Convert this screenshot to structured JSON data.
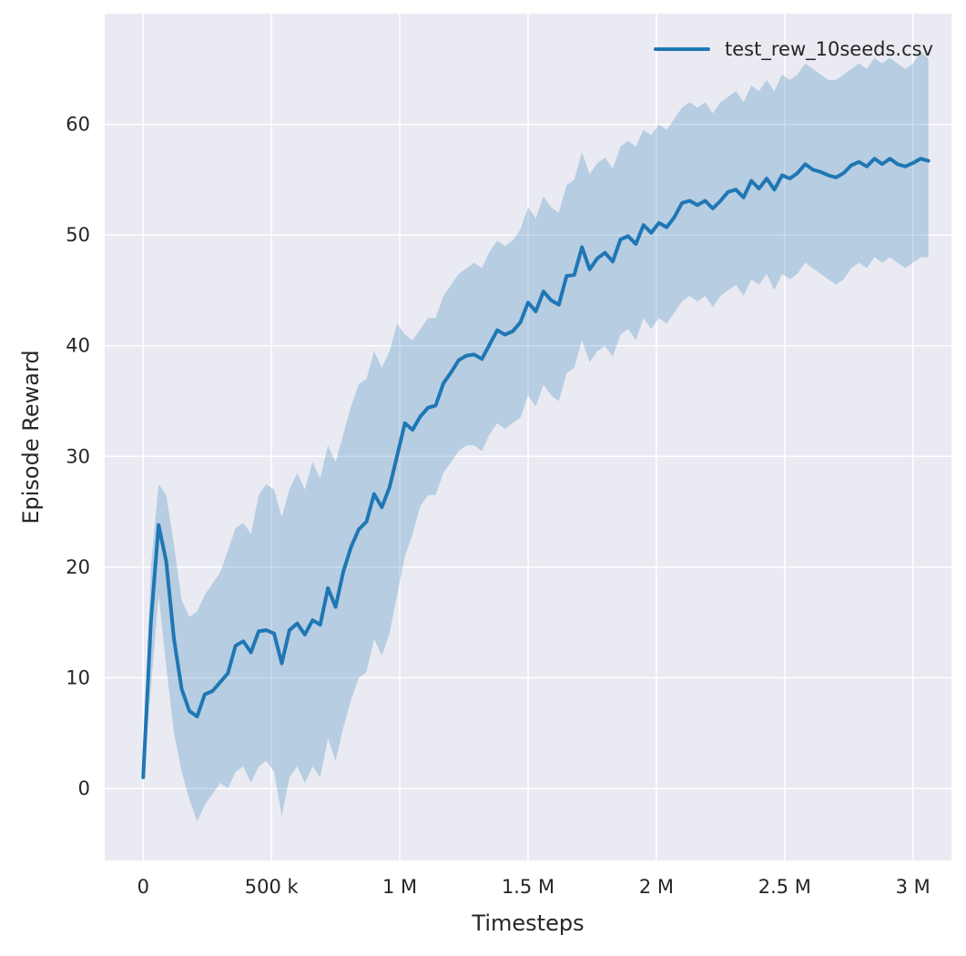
{
  "figure": {
    "background": "#ffffff",
    "axes_background": "#eaeaf2",
    "grid_color": "#ffffff",
    "text_color": "#262626"
  },
  "chart_data": {
    "type": "line",
    "title": "",
    "xlabel": "Timesteps",
    "ylabel": "Episode Reward",
    "grid": true,
    "legend": {
      "position": "upper right",
      "frame": false,
      "entries": [
        {
          "label": "test_rew_10seeds.csv",
          "color": "#1f77b4"
        }
      ]
    },
    "xlim": [
      -150000,
      3150000
    ],
    "ylim": [
      -6.5,
      70
    ],
    "x_ticks": [
      {
        "value": 0,
        "label": "0"
      },
      {
        "value": 500000,
        "label": "500 k"
      },
      {
        "value": 1000000,
        "label": "1 M"
      },
      {
        "value": 1500000,
        "label": "1.5 M"
      },
      {
        "value": 2000000,
        "label": "2 M"
      },
      {
        "value": 2500000,
        "label": "2.5 M"
      },
      {
        "value": 3000000,
        "label": "3 M"
      }
    ],
    "y_ticks": [
      {
        "value": 0,
        "label": "0"
      },
      {
        "value": 10,
        "label": "10"
      },
      {
        "value": 20,
        "label": "20"
      },
      {
        "value": 30,
        "label": "30"
      },
      {
        "value": 40,
        "label": "40"
      },
      {
        "value": 50,
        "label": "50"
      },
      {
        "value": 60,
        "label": "60"
      }
    ],
    "series": [
      {
        "name": "test_rew_10seeds.csv",
        "color": "#1f77b4",
        "band_opacity": 0.25,
        "x": [
          0,
          30000,
          60000,
          90000,
          120000,
          150000,
          180000,
          210000,
          240000,
          270000,
          300000,
          330000,
          360000,
          390000,
          420000,
          450000,
          480000,
          510000,
          540000,
          570000,
          600000,
          630000,
          660000,
          690000,
          720000,
          750000,
          780000,
          810000,
          840000,
          870000,
          900000,
          930000,
          960000,
          990000,
          1020000,
          1050000,
          1080000,
          1110000,
          1140000,
          1170000,
          1200000,
          1230000,
          1260000,
          1290000,
          1320000,
          1350000,
          1380000,
          1410000,
          1440000,
          1470000,
          1500000,
          1530000,
          1560000,
          1590000,
          1620000,
          1650000,
          1680000,
          1710000,
          1740000,
          1770000,
          1800000,
          1830000,
          1860000,
          1890000,
          1920000,
          1950000,
          1980000,
          2010000,
          2040000,
          2070000,
          2100000,
          2130000,
          2160000,
          2190000,
          2220000,
          2250000,
          2280000,
          2310000,
          2340000,
          2370000,
          2400000,
          2430000,
          2460000,
          2490000,
          2520000,
          2550000,
          2580000,
          2610000,
          2640000,
          2670000,
          2700000,
          2730000,
          2760000,
          2790000,
          2820000,
          2850000,
          2880000,
          2910000,
          2940000,
          2970000,
          3000000,
          3030000,
          3060000
        ],
        "mean": [
          1.0,
          15.0,
          23.8,
          20.5,
          13.5,
          9.0,
          7.0,
          6.5,
          8.5,
          8.8,
          9.6,
          10.4,
          12.9,
          13.3,
          12.3,
          14.2,
          14.3,
          14.0,
          11.3,
          14.3,
          14.9,
          13.9,
          15.2,
          14.8,
          18.1,
          16.4,
          19.6,
          21.8,
          23.4,
          24.1,
          26.6,
          25.4,
          27.2,
          30.1,
          33.0,
          32.4,
          33.6,
          34.4,
          34.6,
          36.6,
          37.6,
          38.7,
          39.1,
          39.2,
          38.8,
          40.1,
          41.4,
          41.0,
          41.3,
          42.1,
          43.9,
          43.1,
          44.9,
          44.1,
          43.7,
          46.3,
          46.4,
          48.9,
          46.9,
          47.9,
          48.4,
          47.6,
          49.6,
          49.9,
          49.2,
          50.9,
          50.2,
          51.1,
          50.7,
          51.6,
          52.9,
          53.1,
          52.7,
          53.1,
          52.4,
          53.1,
          53.9,
          54.1,
          53.4,
          54.9,
          54.2,
          55.1,
          54.1,
          55.4,
          55.1,
          55.6,
          56.4,
          55.9,
          55.7,
          55.4,
          55.2,
          55.6,
          56.3,
          56.6,
          56.2,
          56.9,
          56.4,
          56.9,
          56.4,
          56.2,
          56.5,
          56.9,
          56.7
        ],
        "band_lower": [
          0.8,
          9.0,
          17.5,
          11.0,
          5.0,
          1.5,
          -1.0,
          -3.0,
          -1.5,
          -0.5,
          0.5,
          0.0,
          1.5,
          2.0,
          0.5,
          2.0,
          2.5,
          1.5,
          -2.5,
          1.0,
          2.0,
          0.5,
          2.0,
          1.0,
          4.5,
          2.5,
          5.5,
          8.0,
          10.0,
          10.5,
          13.5,
          12.0,
          14.0,
          17.5,
          21.0,
          23.0,
          25.5,
          26.5,
          26.5,
          28.5,
          29.5,
          30.5,
          31.0,
          31.0,
          30.5,
          32.0,
          33.0,
          32.5,
          33.0,
          33.5,
          35.5,
          34.5,
          36.5,
          35.5,
          35.0,
          37.5,
          38.0,
          40.5,
          38.5,
          39.5,
          40.0,
          39.0,
          41.0,
          41.5,
          40.5,
          42.5,
          41.5,
          42.5,
          42.0,
          43.0,
          44.0,
          44.5,
          44.0,
          44.5,
          43.5,
          44.5,
          45.0,
          45.5,
          44.5,
          46.0,
          45.5,
          46.5,
          45.0,
          46.5,
          46.0,
          46.5,
          47.5,
          47.0,
          46.5,
          46.0,
          45.5,
          46.0,
          47.0,
          47.5,
          47.0,
          48.0,
          47.5,
          48.0,
          47.5,
          47.0,
          47.5,
          48.0,
          48.0
        ],
        "band_upper": [
          1.2,
          20.0,
          27.5,
          26.5,
          22.0,
          17.0,
          15.5,
          16.0,
          17.5,
          18.5,
          19.5,
          21.5,
          23.5,
          24.0,
          23.0,
          26.5,
          27.5,
          27.0,
          24.5,
          27.0,
          28.5,
          27.0,
          29.5,
          28.0,
          31.0,
          29.5,
          32.0,
          34.5,
          36.5,
          37.0,
          39.5,
          38.0,
          39.5,
          42.0,
          41.0,
          40.5,
          41.5,
          42.5,
          42.5,
          44.5,
          45.5,
          46.5,
          47.0,
          47.5,
          47.0,
          48.5,
          49.5,
          49.0,
          49.5,
          50.5,
          52.5,
          51.5,
          53.5,
          52.5,
          52.0,
          54.5,
          55.0,
          57.5,
          55.5,
          56.5,
          57.0,
          56.0,
          58.0,
          58.5,
          58.0,
          59.5,
          59.0,
          60.0,
          59.5,
          60.5,
          61.5,
          62.0,
          61.5,
          62.0,
          61.0,
          62.0,
          62.5,
          63.0,
          62.0,
          63.5,
          63.0,
          64.0,
          63.0,
          64.5,
          64.0,
          64.5,
          65.5,
          65.0,
          64.5,
          64.0,
          64.0,
          64.5,
          65.0,
          65.5,
          65.0,
          66.0,
          65.5,
          66.0,
          65.5,
          65.0,
          65.5,
          66.5,
          66.0
        ]
      }
    ]
  }
}
